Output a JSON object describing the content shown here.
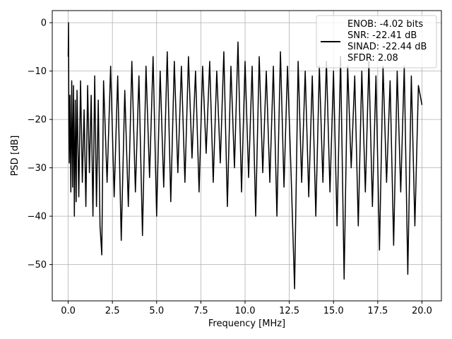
{
  "chart_data": {
    "type": "line",
    "title": "",
    "xlabel": "Frequency [MHz]",
    "ylabel": "PSD [dB]",
    "xlim": [
      -0.9,
      21.1
    ],
    "ylim": [
      -57.5,
      2.5
    ],
    "xticks": [
      0.0,
      2.5,
      5.0,
      7.5,
      10.0,
      12.5,
      15.0,
      17.5,
      20.0
    ],
    "xtick_labels": [
      "0.0",
      "2.5",
      "5.0",
      "7.5",
      "10.0",
      "12.5",
      "15.0",
      "17.5",
      "20.0"
    ],
    "yticks": [
      0,
      -10,
      -20,
      -30,
      -40,
      -50
    ],
    "ytick_labels": [
      "0",
      "−10",
      "−20",
      "−30",
      "−40",
      "−50"
    ],
    "grid": true,
    "legend_position": "top-right",
    "line_color": "#000000",
    "legend_lines": [
      "ENOB: -4.02 bits",
      "SNR: -22.41 dB",
      "SINAD: -22.44 dB",
      "SFDR: 2.08"
    ],
    "series": [
      {
        "x": [
          0.0,
          0.02,
          0.04,
          0.06,
          0.1,
          0.15,
          0.2,
          0.25,
          0.3,
          0.35,
          0.4,
          0.45,
          0.5,
          0.6,
          0.7,
          0.8,
          0.9,
          1.0,
          1.1,
          1.2,
          1.3,
          1.4,
          1.5,
          1.6,
          1.7,
          1.8,
          1.9,
          2.0,
          2.2,
          2.4,
          2.6,
          2.8,
          3.0,
          3.2,
          3.4,
          3.6,
          3.8,
          4.0,
          4.2,
          4.4,
          4.6,
          4.8,
          5.0,
          5.2,
          5.4,
          5.6,
          5.8,
          6.0,
          6.2,
          6.4,
          6.6,
          6.8,
          7.0,
          7.2,
          7.4,
          7.6,
          7.8,
          8.0,
          8.2,
          8.4,
          8.6,
          8.8,
          9.0,
          9.2,
          9.4,
          9.6,
          9.8,
          10.0,
          10.2,
          10.4,
          10.6,
          10.8,
          11.0,
          11.2,
          11.4,
          11.6,
          11.8,
          12.0,
          12.2,
          12.4,
          12.6,
          12.8,
          13.0,
          13.2,
          13.4,
          13.6,
          13.8,
          14.0,
          14.2,
          14.4,
          14.6,
          14.8,
          15.0,
          15.2,
          15.4,
          15.6,
          15.8,
          16.0,
          16.2,
          16.4,
          16.6,
          16.8,
          17.0,
          17.2,
          17.4,
          17.6,
          17.8,
          18.0,
          18.2,
          18.4,
          18.6,
          18.8,
          19.0,
          19.2,
          19.4,
          19.6,
          19.8,
          20.0
        ],
        "y": [
          -7,
          0,
          -20,
          -29,
          -15,
          -35,
          -12,
          -34,
          -13,
          -40,
          -16,
          -37,
          -14,
          -36,
          -12,
          -33,
          -18,
          -38,
          -13,
          -31,
          -15,
          -40,
          -11,
          -38,
          -16,
          -42,
          -48,
          -12,
          -33,
          -9,
          -36,
          -11,
          -45,
          -14,
          -38,
          -8,
          -35,
          -11,
          -44,
          -9,
          -32,
          -7,
          -40,
          -10,
          -34,
          -6,
          -37,
          -8,
          -31,
          -9,
          -33,
          -7,
          -28,
          -10,
          -35,
          -9,
          -27,
          -8,
          -33,
          -10,
          -29,
          -6,
          -38,
          -9,
          -30,
          -4,
          -35,
          -8,
          -32,
          -9,
          -40,
          -7,
          -31,
          -10,
          -33,
          -9,
          -40,
          -6,
          -34,
          -9,
          -31,
          -55,
          -8,
          -33,
          -10,
          -36,
          -11,
          -40,
          -9,
          -33,
          -8,
          -35,
          -10,
          -42,
          -7,
          -53,
          -9,
          -30,
          -11,
          -42,
          -10,
          -35,
          -8,
          -38,
          -11,
          -47,
          -9,
          -33,
          -12,
          -46,
          -10,
          -35,
          -9,
          -52,
          -11,
          -42,
          -13,
          -17
        ]
      }
    ]
  }
}
